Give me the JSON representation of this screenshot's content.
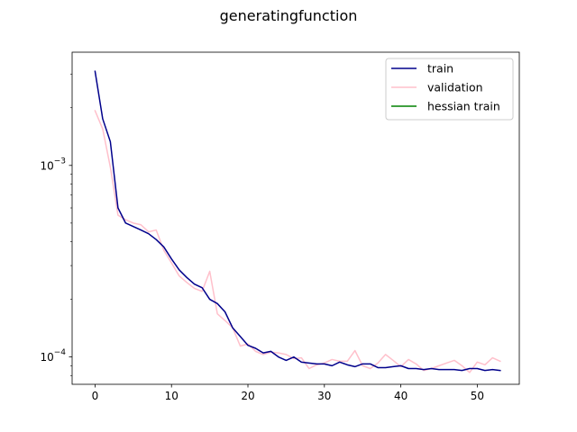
{
  "chart_data": {
    "type": "line",
    "title": "generatingfunction",
    "xlabel": "",
    "ylabel": "",
    "yscale": "log",
    "xlim": [
      -3,
      55.5
    ],
    "ylim": [
      7.2e-05,
      0.0039
    ],
    "xticks": [
      0,
      10,
      20,
      30,
      40,
      50
    ],
    "xtick_labels": [
      "0",
      "10",
      "20",
      "30",
      "40",
      "50"
    ],
    "yticks": [
      0.001,
      0.0001
    ],
    "ytick_base": "10",
    "ytick_exponents": [
      "−3",
      "−4"
    ],
    "grid": false,
    "legend_position": "top-right",
    "series": [
      {
        "name": "train",
        "color": "#00008b",
        "x": [
          0,
          1,
          2,
          3,
          4,
          5,
          6,
          7,
          8,
          9,
          10,
          11,
          12,
          13,
          14,
          15,
          16,
          17,
          18,
          19,
          20,
          21,
          22,
          23,
          24,
          25,
          26,
          27,
          28,
          29,
          30,
          31,
          32,
          33,
          34,
          35,
          36,
          37,
          38,
          39,
          40,
          41,
          42,
          43,
          44,
          45,
          46,
          47,
          48,
          49,
          50,
          51,
          52,
          53
        ],
        "values": [
          0.0031,
          0.00175,
          0.00133,
          0.0006,
          0.0005,
          0.00048,
          0.00046,
          0.00044,
          0.00041,
          0.000375,
          0.000325,
          0.000285,
          0.00026,
          0.00024,
          0.00023,
          0.0002,
          0.00019,
          0.000172,
          0.000142,
          0.000128,
          0.000115,
          0.000111,
          0.000105,
          0.000107,
          0.0001,
          9.6e-05,
          0.0001,
          9.4e-05,
          9.3e-05,
          9.2e-05,
          9.2e-05,
          9e-05,
          9.4e-05,
          9.1e-05,
          8.9e-05,
          9.2e-05,
          9.2e-05,
          8.8e-05,
          8.8e-05,
          8.9e-05,
          9e-05,
          8.7e-05,
          8.7e-05,
          8.6e-05,
          8.7e-05,
          8.6e-05,
          8.6e-05,
          8.6e-05,
          8.5e-05,
          8.7e-05,
          8.7e-05,
          8.5e-05,
          8.6e-05,
          8.5e-05
        ]
      },
      {
        "name": "validation",
        "color": "#ffc0cb",
        "x": [
          0,
          1,
          2,
          3,
          4,
          5,
          6,
          7,
          8,
          9,
          10,
          11,
          12,
          13,
          14,
          15,
          16,
          17,
          18,
          19,
          20,
          21,
          22,
          23,
          24,
          25,
          26,
          27,
          28,
          29,
          30,
          31,
          32,
          33,
          34,
          35,
          36,
          37,
          38,
          39,
          40,
          41,
          42,
          43,
          44,
          45,
          46,
          47,
          48,
          49,
          50,
          51,
          52,
          53
        ],
        "values": [
          0.00193,
          0.00155,
          0.00098,
          0.00055,
          0.00052,
          0.0005,
          0.00049,
          0.00045,
          0.00046,
          0.00036,
          0.00031,
          0.000265,
          0.000245,
          0.000228,
          0.00022,
          0.00028,
          0.000168,
          0.000155,
          0.000142,
          0.000114,
          0.000117,
          0.000107,
          0.000103,
          0.000106,
          0.000105,
          0.000103,
          9.8e-05,
          9.9e-05,
          8.7e-05,
          9.1e-05,
          9.3e-05,
          9.7e-05,
          9.5e-05,
          9.5e-05,
          0.000108,
          9e-05,
          8.7e-05,
          9.3e-05,
          0.000103,
          9.6e-05,
          8.9e-05,
          9.7e-05,
          9.2e-05,
          8.5e-05,
          8.7e-05,
          9e-05,
          9.3e-05,
          9.6e-05,
          9e-05,
          8.3e-05,
          9.4e-05,
          9.1e-05,
          9.9e-05,
          9.5e-05
        ]
      },
      {
        "name": "hessian train",
        "color": "#008000",
        "x": [],
        "values": []
      }
    ]
  }
}
